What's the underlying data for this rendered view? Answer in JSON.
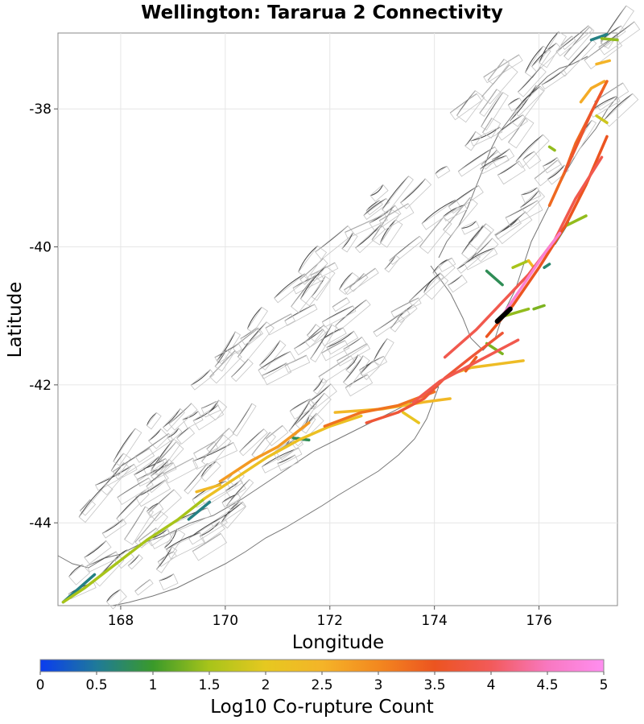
{
  "figure": {
    "title": "Wellington: Tararua 2 Connectivity",
    "xlabel": "Longitude",
    "ylabel": "Latitude"
  },
  "chart_data": {
    "type": "map",
    "title": "Wellington: Tararua 2 Connectivity",
    "xlabel": "Longitude",
    "ylabel": "Latitude",
    "xlim": [
      166.8,
      177.5
    ],
    "ylim": [
      -45.2,
      -36.9
    ],
    "x_ticks": [
      168,
      170,
      172,
      174,
      176
    ],
    "y_ticks": [
      -38,
      -40,
      -42,
      -44
    ],
    "x_tick_labels": [
      "168",
      "170",
      "172",
      "174",
      "176"
    ],
    "y_tick_labels": [
      "-38",
      "-40",
      "-42",
      "-44"
    ],
    "grid": true,
    "colorbar": {
      "label": "Log10 Co-rupture Count",
      "range": [
        0,
        5
      ],
      "ticks": [
        0,
        0.5,
        1,
        1.5,
        2,
        2.5,
        3,
        3.5,
        4,
        4.5,
        5
      ],
      "tick_labels": [
        "0",
        "0.5",
        "1",
        "1.5",
        "2",
        "2.5",
        "3",
        "3.5",
        "4",
        "4.5",
        "5"
      ],
      "colors": [
        "#0a3cf0",
        "#1f7a99",
        "#3a9a2a",
        "#a8c41a",
        "#e6c820",
        "#f4b428",
        "#f3881f",
        "#ec5420",
        "#f25a5a",
        "#f878c0",
        "#ff8ef0"
      ]
    },
    "source_fault": {
      "name": "Tararua 2",
      "lon": [
        175.2,
        175.45
      ],
      "lat": [
        -41.08,
        -40.9
      ]
    },
    "connected_faults": [
      {
        "lon": [
          166.9,
          167.3,
          167.9,
          168.5,
          169.1,
          169.6
        ],
        "lat": [
          -45.15,
          -44.95,
          -44.6,
          -44.25,
          -43.95,
          -43.65
        ],
        "log10_count": 1.5
      },
      {
        "lon": [
          166.9,
          167.2,
          167.5
        ],
        "lat": [
          -45.15,
          -44.95,
          -44.75
        ],
        "log10_count": 0.6
      },
      {
        "lon": [
          169.6,
          170.2,
          170.8,
          171.4,
          172.0,
          172.6
        ],
        "lat": [
          -43.65,
          -43.35,
          -43.05,
          -42.8,
          -42.6,
          -42.45
        ],
        "log10_count": 2.2
      },
      {
        "lon": [
          169.9,
          170.5,
          171.0,
          171.6
        ],
        "lat": [
          -43.4,
          -43.1,
          -42.9,
          -42.55
        ],
        "log10_count": 2.8
      },
      {
        "lon": [
          171.3,
          171.6
        ],
        "lat": [
          -42.77,
          -42.8
        ],
        "log10_count": 0.8
      },
      {
        "lon": [
          169.3,
          169.7
        ],
        "lat": [
          -43.95,
          -43.7
        ],
        "log10_count": 0.6
      },
      {
        "lon": [
          169.45,
          169.9
        ],
        "lat": [
          -43.55,
          -43.45
        ],
        "log10_count": 2.4
      },
      {
        "lon": [
          171.9,
          172.6,
          173.3,
          174.0
        ],
        "lat": [
          -42.6,
          -42.4,
          -42.3,
          -42.1
        ],
        "log10_count": 3.2
      },
      {
        "lon": [
          172.7,
          173.3,
          173.8,
          174.2,
          174.7,
          175.3
        ],
        "lat": [
          -42.55,
          -42.4,
          -42.2,
          -41.9,
          -41.6,
          -41.25
        ],
        "log10_count": 3.7
      },
      {
        "lon": [
          173.6,
          174.1,
          174.6,
          175.1,
          175.6
        ],
        "lat": [
          -42.25,
          -41.95,
          -41.75,
          -41.55,
          -41.35
        ],
        "log10_count": 3.9
      },
      {
        "lon": [
          172.1,
          173.0,
          173.8,
          174.3
        ],
        "lat": [
          -42.4,
          -42.35,
          -42.25,
          -42.2
        ],
        "log10_count": 2.4
      },
      {
        "lon": [
          174.2,
          174.8,
          175.3,
          175.8,
          176.3,
          176.7,
          177.2
        ],
        "lat": [
          -41.6,
          -41.2,
          -40.8,
          -40.4,
          -39.9,
          -39.3,
          -38.7
        ],
        "log10_count": 3.9
      },
      {
        "lon": [
          175.0,
          175.5,
          176.0,
          176.5,
          176.9,
          177.3
        ],
        "lat": [
          -41.3,
          -40.85,
          -40.3,
          -39.7,
          -39.1,
          -38.4
        ],
        "log10_count": 3.5
      },
      {
        "lon": [
          175.3,
          175.7,
          176.1,
          176.4
        ],
        "lat": [
          -41.0,
          -40.55,
          -40.1,
          -39.8
        ],
        "log10_count": 4.7
      },
      {
        "lon": [
          176.2,
          176.5,
          176.7,
          176.9,
          177.1,
          177.3
        ],
        "lat": [
          -39.4,
          -38.9,
          -38.5,
          -38.2,
          -37.9,
          -37.6
        ],
        "log10_count": 3.3
      },
      {
        "lon": [
          176.5,
          176.8,
          177.0,
          177.2
        ],
        "lat": [
          -38.9,
          -38.4,
          -38.05,
          -37.75
        ],
        "log10_count": 3.6
      },
      {
        "lon": [
          176.8,
          177.0,
          177.25
        ],
        "lat": [
          -37.9,
          -37.7,
          -37.6
        ],
        "log10_count": 2.6
      },
      {
        "lon": [
          174.3,
          174.7,
          175.2,
          175.7
        ],
        "lat": [
          -41.85,
          -41.75,
          -41.7,
          -41.65
        ],
        "log10_count": 2.3
      },
      {
        "lon": [
          175.35,
          175.8
        ],
        "lat": [
          -41.0,
          -40.9
        ],
        "log10_count": 1.4
      },
      {
        "lon": [
          175.0,
          175.3
        ],
        "lat": [
          -41.4,
          -41.55
        ],
        "log10_count": 1.3
      },
      {
        "lon": [
          175.0,
          175.3
        ],
        "lat": [
          -40.35,
          -40.55
        ],
        "log10_count": 0.8
      },
      {
        "lon": [
          175.5,
          175.8
        ],
        "lat": [
          -40.3,
          -40.2
        ],
        "log10_count": 1.5
      },
      {
        "lon": [
          175.8,
          175.9
        ],
        "lat": [
          -40.2,
          -40.3
        ],
        "log10_count": 2.4
      },
      {
        "lon": [
          176.1,
          176.2
        ],
        "lat": [
          -40.3,
          -40.25
        ],
        "log10_count": 0.7
      },
      {
        "lon": [
          176.3,
          176.55
        ],
        "lat": [
          -39.95,
          -39.65
        ],
        "log10_count": 0.7
      },
      {
        "lon": [
          176.5,
          176.9
        ],
        "lat": [
          -39.7,
          -39.55
        ],
        "log10_count": 1.4
      },
      {
        "lon": [
          177.0,
          177.3
        ],
        "lat": [
          -37.0,
          -36.92
        ],
        "log10_count": 0.6
      },
      {
        "lon": [
          177.2,
          177.5
        ],
        "lat": [
          -36.98,
          -37.0
        ],
        "log10_count": 1.4
      },
      {
        "lon": [
          177.1,
          177.35
        ],
        "lat": [
          -37.35,
          -37.3
        ],
        "log10_count": 2.5
      },
      {
        "lon": [
          176.2,
          176.3
        ],
        "lat": [
          -38.55,
          -38.6
        ],
        "log10_count": 1.4
      },
      {
        "lon": [
          177.1,
          177.3
        ],
        "lat": [
          -38.1,
          -38.2
        ],
        "log10_count": 1.8
      },
      {
        "lon": [
          175.9,
          176.1
        ],
        "lat": [
          -40.9,
          -40.85
        ],
        "log10_count": 1.3
      },
      {
        "lon": [
          174.6,
          174.8
        ],
        "lat": [
          -41.8,
          -41.6
        ],
        "log10_count": 3.4
      },
      {
        "lon": [
          173.4,
          173.7
        ],
        "lat": [
          -42.4,
          -42.55
        ],
        "log10_count": 2.1
      }
    ],
    "annotations": []
  }
}
